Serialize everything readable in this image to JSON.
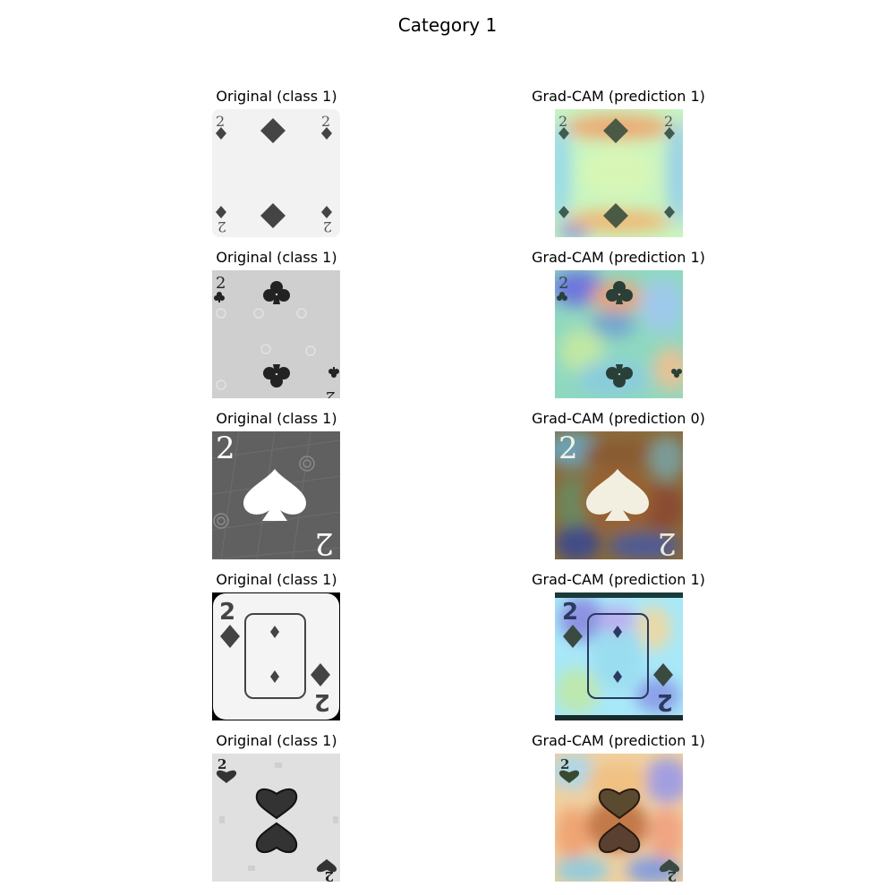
{
  "figure": {
    "title": "Category 1"
  },
  "rows": [
    {
      "original_title": "Original (class 1)",
      "gradcam_title": "Grad-CAM (prediction 1)",
      "card": "2 of diamonds, small corner pips, light background"
    },
    {
      "original_title": "Original (class 1)",
      "gradcam_title": "Grad-CAM (prediction 1)",
      "card": "2 of clubs, gray background"
    },
    {
      "original_title": "Original (class 1)",
      "gradcam_title": "Grad-CAM (prediction 0)",
      "card": "2 of spades, dark gray background"
    },
    {
      "original_title": "Original (class 1)",
      "gradcam_title": "Grad-CAM (prediction 1)",
      "card": "2 of diamonds, framed center"
    },
    {
      "original_title": "Original (class 1)",
      "gradcam_title": "Grad-CAM (prediction 1)",
      "card": "2 of hearts, light gray background"
    }
  ]
}
